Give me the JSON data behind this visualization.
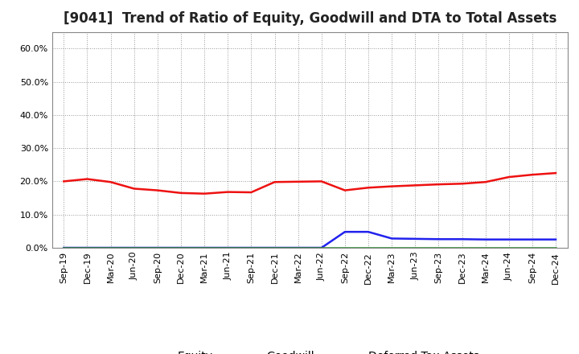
{
  "title": "[9041]  Trend of Ratio of Equity, Goodwill and DTA to Total Assets",
  "x_labels": [
    "Sep-19",
    "Dec-19",
    "Mar-20",
    "Jun-20",
    "Sep-20",
    "Dec-20",
    "Mar-21",
    "Jun-21",
    "Sep-21",
    "Dec-21",
    "Mar-22",
    "Jun-22",
    "Sep-22",
    "Dec-22",
    "Mar-23",
    "Jun-23",
    "Sep-23",
    "Dec-23",
    "Mar-24",
    "Jun-24",
    "Sep-24",
    "Dec-24"
  ],
  "equity": [
    0.2,
    0.207,
    0.198,
    0.178,
    0.173,
    0.165,
    0.163,
    0.168,
    0.167,
    0.198,
    0.199,
    0.2,
    0.173,
    0.181,
    0.185,
    0.188,
    0.191,
    0.193,
    0.198,
    0.213,
    0.22,
    0.225
  ],
  "goodwill": [
    0.0,
    0.0,
    0.0,
    0.0,
    0.0,
    0.0,
    0.0,
    0.0,
    0.0,
    0.0,
    0.0,
    0.0,
    0.048,
    0.048,
    0.028,
    0.027,
    0.026,
    0.026,
    0.025,
    0.025,
    0.025,
    0.025
  ],
  "dta": [
    0.0,
    0.0,
    0.0,
    0.0,
    0.0,
    0.0,
    0.0,
    0.0,
    0.0,
    0.0,
    0.0,
    0.0,
    0.0,
    0.0,
    0.0,
    0.0,
    0.0,
    0.0,
    0.0,
    0.0,
    0.0,
    0.0
  ],
  "equity_color": "#EE1111",
  "goodwill_color": "#2222EE",
  "dta_color": "#228822",
  "ylim": [
    0.0,
    0.65
  ],
  "yticks": [
    0.0,
    0.1,
    0.2,
    0.3,
    0.4,
    0.5,
    0.6
  ],
  "background_color": "#FFFFFF",
  "grid_color": "#999999",
  "title_fontsize": 12,
  "legend_fontsize": 10,
  "tick_fontsize": 8
}
